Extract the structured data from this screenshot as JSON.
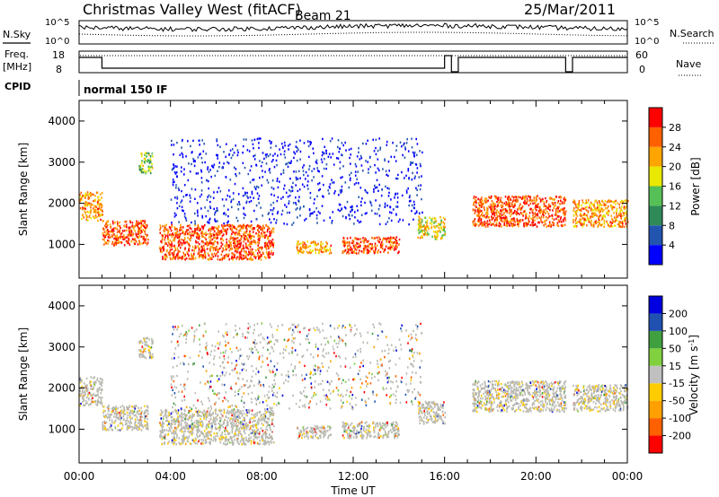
{
  "header": {
    "title": "Christmas Valley West (fitACF)",
    "beam": "Beam 21",
    "date": "25/Mar/2011"
  },
  "summary": {
    "nsky_label": "N.Sky",
    "nsearch_label": "N.Search",
    "noise_ticks": [
      "10^5",
      "10^0"
    ],
    "freq_label": "Freq.",
    "freq_unit": "[MHz]",
    "freq_ticks": [
      "18",
      "8"
    ],
    "nave_label": "Nave",
    "nave_ticks": [
      "60",
      "0"
    ],
    "cpid_label": "CPID",
    "cpid_value": "normal 150 IF"
  },
  "colors": {
    "power_scale": [
      "#0000ff",
      "#2255b0",
      "#2e8b57",
      "#55c055",
      "#e8e800",
      "#ffa500",
      "#ff6000",
      "#ff0000"
    ],
    "velocity_scale": [
      "#ff0000",
      "#ff6000",
      "#ffa000",
      "#ffcc00",
      "#c0c0c0",
      "#80d040",
      "#40a040",
      "#2050b0",
      "#0000e0"
    ],
    "ground_scatter": "#b8b8b0"
  },
  "chart_data": [
    {
      "type": "heatmap",
      "name": "power",
      "xlabel": "",
      "ylabel": "Slant Range [km]",
      "xlim": [
        0,
        24
      ],
      "ylim": [
        180,
        4500
      ],
      "yticks": [
        1000,
        2000,
        3000,
        4000
      ],
      "colorbar_label": "Power [dB]",
      "colorbar_ticks": [
        "4",
        "8",
        "12",
        "16",
        "20",
        "24",
        "28"
      ],
      "regions": [
        {
          "t": [
            0.0,
            1.0
          ],
          "r": [
            1600,
            2300
          ],
          "level": 6
        },
        {
          "t": [
            1.0,
            3.0
          ],
          "r": [
            1000,
            1600
          ],
          "level": 7
        },
        {
          "t": [
            2.6,
            3.2
          ],
          "r": [
            2750,
            3250
          ],
          "level": 4
        },
        {
          "t": [
            3.5,
            8.5
          ],
          "r": [
            650,
            1500
          ],
          "level": 7
        },
        {
          "t": [
            9.5,
            11.0
          ],
          "r": [
            800,
            1100
          ],
          "level": 6
        },
        {
          "t": [
            11.5,
            14.0
          ],
          "r": [
            800,
            1200
          ],
          "level": 7
        },
        {
          "t": [
            14.8,
            16.0
          ],
          "r": [
            1150,
            1700
          ],
          "level": 5
        },
        {
          "t": [
            17.2,
            21.3
          ],
          "r": [
            1450,
            2200
          ],
          "level": 7
        },
        {
          "t": [
            21.6,
            24.0
          ],
          "r": [
            1450,
            2100
          ],
          "level": 6
        },
        {
          "t": [
            4.0,
            15.0
          ],
          "r": [
            1500,
            3600
          ],
          "level": 1
        }
      ]
    },
    {
      "type": "heatmap",
      "name": "velocity",
      "xlabel": "Time UT",
      "ylabel": "Slant Range [km]",
      "xlim": [
        0,
        24
      ],
      "ylim": [
        180,
        4500
      ],
      "yticks": [
        1000,
        2000,
        3000,
        4000
      ],
      "xticks": [
        "00:00",
        "04:00",
        "08:00",
        "12:00",
        "16:00",
        "20:00",
        "00:00"
      ],
      "colorbar_label": "Velocity [m s^-1]",
      "colorbar_ticks": [
        "-200",
        "-100",
        "-50",
        "-15",
        "15",
        "50",
        "100",
        "200"
      ]
    }
  ]
}
